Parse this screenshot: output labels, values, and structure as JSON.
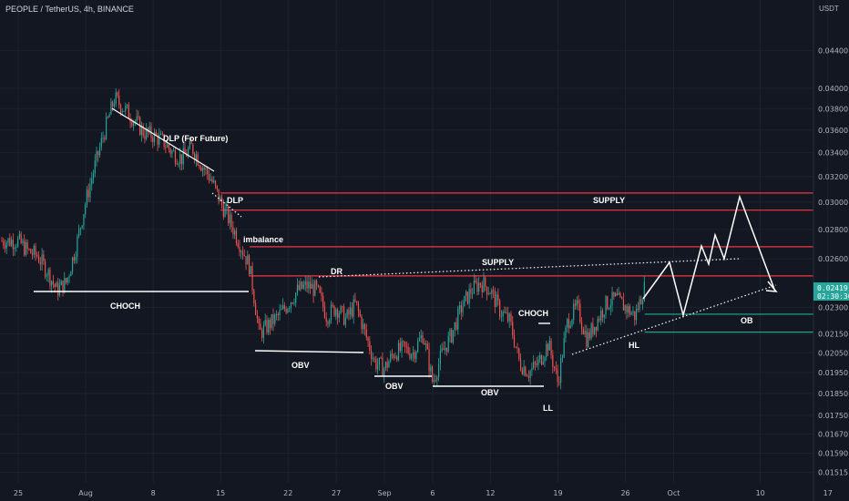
{
  "header": {
    "symbol_title": "PEOPLE / TetherUS, 4h, BINANCE",
    "currency": "USDT"
  },
  "colors": {
    "background": "#131722",
    "up": "#26a69a",
    "down": "#ef5350",
    "supply_line": "#f23645",
    "ob_line": "#22ab94",
    "annotation": "#ffffff",
    "last_price_tag": "#26a69a"
  },
  "chart_data": {
    "type": "candlestick",
    "y_scale": "log",
    "ylim": [
      0.0149,
      0.0486
    ],
    "y_ticks": [
      "0.04400",
      "0.04000",
      "0.03800",
      "0.03600",
      "0.03400",
      "0.03200",
      "0.03000",
      "0.02800",
      "0.02600",
      "0.02300",
      "0.02150",
      "0.02050",
      "0.01950",
      "0.01850",
      "0.01750",
      "0.01670",
      "0.01590",
      "0.01515"
    ],
    "x_ticks": [
      "25",
      "Aug",
      "8",
      "15",
      "22",
      "27",
      "Sep",
      "6",
      "12",
      "19",
      "26",
      "Oct",
      "10",
      "17"
    ],
    "last_price": "0.02419",
    "countdown": "02:30:36",
    "price_path": [
      [
        "Jul 25",
        0.0272
      ],
      [
        "Jul 26",
        0.0265
      ],
      [
        "Jul 27",
        0.0262
      ],
      [
        "Jul 28",
        0.0252
      ],
      [
        "Jul 29",
        0.024
      ],
      [
        "Jul 30",
        0.0245
      ],
      [
        "Jul 31",
        0.0268
      ],
      [
        "Aug 1",
        0.03
      ],
      [
        "Aug 2",
        0.033
      ],
      [
        "Aug 3",
        0.036
      ],
      [
        "Aug 4",
        0.039
      ],
      [
        "Aug 5",
        0.038
      ],
      [
        "Aug 6",
        0.037
      ],
      [
        "Aug 7",
        0.0358
      ],
      [
        "Aug 8",
        0.0355
      ],
      [
        "Aug 9",
        0.035
      ],
      [
        "Aug 10",
        0.034
      ],
      [
        "Aug 11",
        0.0335
      ],
      [
        "Aug 12",
        0.0345
      ],
      [
        "Aug 13",
        0.033
      ],
      [
        "Aug 14",
        0.0318
      ],
      [
        "Aug 15",
        0.03
      ],
      [
        "Aug 16",
        0.0285
      ],
      [
        "Aug 17",
        0.027
      ],
      [
        "Aug 18",
        0.0255
      ],
      [
        "Aug 19",
        0.0215
      ],
      [
        "Aug 20",
        0.022
      ],
      [
        "Aug 21",
        0.0225
      ],
      [
        "Aug 22",
        0.0232
      ],
      [
        "Aug 23",
        0.024
      ],
      [
        "Aug 24",
        0.0243
      ],
      [
        "Aug 25",
        0.024
      ],
      [
        "Aug 26",
        0.0225
      ],
      [
        "Aug 27",
        0.023
      ],
      [
        "Aug 28",
        0.0223
      ],
      [
        "Aug 29",
        0.0232
      ],
      [
        "Aug 30",
        0.0215
      ],
      [
        "Aug 31",
        0.02
      ],
      [
        "Sep 1",
        0.0197
      ],
      [
        "Sep 2",
        0.0205
      ],
      [
        "Sep 3",
        0.0207
      ],
      [
        "Sep 4",
        0.0205
      ],
      [
        "Sep 5",
        0.0215
      ],
      [
        "Sep 6",
        0.019
      ],
      [
        "Sep 7",
        0.0205
      ],
      [
        "Sep 8",
        0.0215
      ],
      [
        "Sep 9",
        0.023
      ],
      [
        "Sep 10",
        0.024
      ],
      [
        "Sep 11",
        0.0245
      ],
      [
        "Sep 12",
        0.024
      ],
      [
        "Sep 13",
        0.0228
      ],
      [
        "Sep 14",
        0.0222
      ],
      [
        "Sep 15",
        0.02
      ],
      [
        "Sep 16",
        0.0195
      ],
      [
        "Sep 17",
        0.02
      ],
      [
        "Sep 18",
        0.021
      ],
      [
        "Sep 19",
        0.019
      ],
      [
        "Sep 20",
        0.0222
      ],
      [
        "Sep 21",
        0.023
      ],
      [
        "Sep 22",
        0.0212
      ],
      [
        "Sep 23",
        0.0222
      ],
      [
        "Sep 24",
        0.0232
      ],
      [
        "Sep 25",
        0.0235
      ],
      [
        "Sep 26",
        0.023
      ],
      [
        "Sep 27",
        0.0225
      ],
      [
        "Sep 28",
        0.0242
      ]
    ],
    "levels": [
      {
        "label": "SUPPLY",
        "from": "Aug 15",
        "to": "Oct 18",
        "price": 0.0307,
        "color": "#f23645"
      },
      {
        "label": "",
        "from": "Aug 15",
        "to": "Oct 18",
        "price": 0.0294,
        "color": "#f23645"
      },
      {
        "label": "",
        "from": "Aug 18",
        "to": "Oct 18",
        "price": 0.0268,
        "color": "#f23645"
      },
      {
        "label": "",
        "from": "Aug 18",
        "to": "Oct 18",
        "price": 0.0249,
        "color": "#f23645"
      },
      {
        "label": "OB",
        "from": "Sep 28",
        "to": "Oct 18",
        "price": 0.0226,
        "color": "#22ab94"
      },
      {
        "label": "",
        "from": "Sep 28",
        "to": "Oct 18",
        "price": 0.0216,
        "color": "#22ab94"
      }
    ]
  },
  "annotations": {
    "choch_main": "CHOCH",
    "dlp": "DLP (For Future)",
    "dlp_short": "DLP",
    "imbalance": "imbalance",
    "supply_top": "SUPPLY",
    "supply_mid": "SUPPLY",
    "dr": "DR",
    "obv_1": "OBV",
    "obv_2": "OBV",
    "obv_3": "OBV",
    "choch_right": "CHOCH",
    "ll": "LL",
    "hl": "HL",
    "ob": "OB"
  }
}
